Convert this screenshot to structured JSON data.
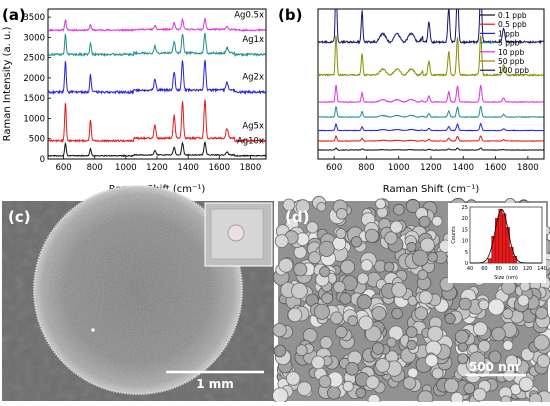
{
  "panels": {
    "a": {
      "label": "(a)"
    },
    "b": {
      "label": "(b)"
    },
    "c": {
      "label": "(c)",
      "scalebar": "1 mm"
    },
    "d": {
      "label": "(d)",
      "scalebar": "500 nm"
    }
  },
  "chart_data": [
    {
      "id": "a",
      "type": "line",
      "title": "",
      "xlabel": "Raman Shift (cm⁻¹)",
      "ylabel": "Raman Intensity (a. u.)",
      "xlim": [
        500,
        1900
      ],
      "ylim": [
        0,
        3700
      ],
      "xticks": [
        600,
        800,
        1000,
        1200,
        1400,
        1600,
        1800
      ],
      "yticks": [
        0,
        500,
        1000,
        1500,
        2000,
        2500,
        3000,
        3500
      ],
      "peaks_cm": [
        612,
        773,
        1187,
        1310,
        1364,
        1508,
        1650
      ],
      "series": [
        {
          "name": "Ag0.5x",
          "color": "#e22ee2",
          "baseline": 3180,
          "peak_scale": 0.28,
          "noise": 0.1
        },
        {
          "name": "Ag1x",
          "color": "#1f8f8f",
          "baseline": 2580,
          "peak_scale": 0.55,
          "noise": 0.14
        },
        {
          "name": "Ag2x",
          "color": "#2424d8",
          "baseline": 1650,
          "peak_scale": 0.85,
          "noise": 0.15
        },
        {
          "name": "Ag5x",
          "color": "#e41a1a",
          "baseline": 450,
          "peak_scale": 1.05,
          "noise": 0.12
        },
        {
          "name": "Ag10x",
          "color": "#111111",
          "baseline": 80,
          "peak_scale": 0.35,
          "noise": 0.06
        }
      ]
    },
    {
      "id": "b",
      "type": "line",
      "title": "",
      "xlabel": "Raman Shift (cm⁻¹)",
      "ylabel": "",
      "xlim": [
        500,
        1900
      ],
      "xticks": [
        600,
        800,
        1000,
        1200,
        1400,
        1600,
        1800
      ],
      "peaks_cm": [
        612,
        773,
        1187,
        1310,
        1364,
        1508,
        1650
      ],
      "series": [
        {
          "name": "0.1 ppb",
          "color": "#111111",
          "baseline": 0.06,
          "peak_scale": 0.05,
          "noise": 0.05
        },
        {
          "name": "0.5 ppb",
          "color": "#e41a1a",
          "baseline": 0.12,
          "peak_scale": 0.12,
          "noise": 0.06
        },
        {
          "name": "1 ppb",
          "color": "#2424d8",
          "baseline": 0.19,
          "peak_scale": 0.16,
          "noise": 0.06
        },
        {
          "name": "5 ppb",
          "color": "#1f8f8f",
          "baseline": 0.28,
          "peak_scale": 0.25,
          "noise": 0.07
        },
        {
          "name": "10 ppb",
          "color": "#e22ee2",
          "baseline": 0.38,
          "peak_scale": 0.4,
          "noise": 0.08
        },
        {
          "name": "50 ppb",
          "color": "#8b8b00",
          "baseline": 0.56,
          "peak_scale": 0.95,
          "noise": 0.16
        },
        {
          "name": "100 ppb",
          "color": "#141470",
          "baseline": 0.78,
          "peak_scale": 1.35,
          "noise": 0.22
        }
      ]
    },
    {
      "id": "d-inset",
      "type": "bar",
      "title": "",
      "xlabel": "Size (nm)",
      "ylabel": "Counts",
      "xlim": [
        40,
        140
      ],
      "ylim": [
        0,
        25
      ],
      "xticks": [
        40,
        60,
        80,
        100,
        120,
        140
      ],
      "yticks": [
        0,
        5,
        10,
        15,
        20,
        25
      ],
      "bins": [
        {
          "x0": 65,
          "x1": 70,
          "value": 2
        },
        {
          "x0": 70,
          "x1": 75,
          "value": 12
        },
        {
          "x0": 75,
          "x1": 80,
          "value": 20
        },
        {
          "x0": 80,
          "x1": 85,
          "value": 24
        },
        {
          "x0": 85,
          "x1": 90,
          "value": 22
        },
        {
          "x0": 90,
          "x1": 95,
          "value": 16
        },
        {
          "x0": 95,
          "x1": 100,
          "value": 7
        },
        {
          "x0": 100,
          "x1": 105,
          "value": 3
        }
      ],
      "fit_center": 84,
      "fit_sigma": 9,
      "fit_peak": 24
    }
  ]
}
